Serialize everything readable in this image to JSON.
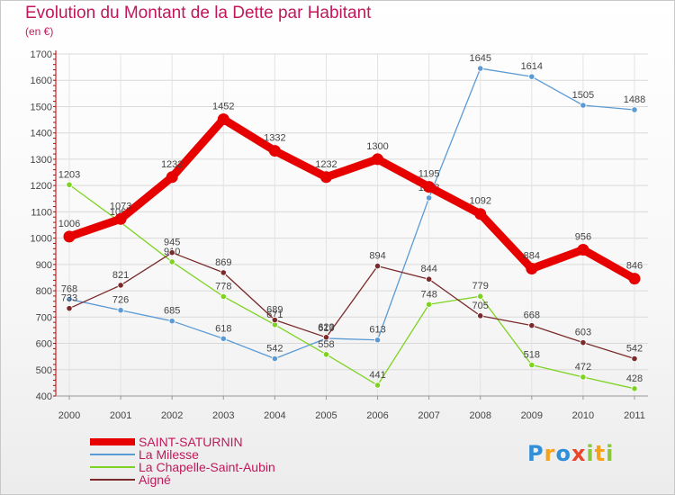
{
  "title": "Evolution du Montant de la Dette par Habitant",
  "subtitle": "(en €)",
  "logo": {
    "text": "Proxiti",
    "letters": [
      {
        "ch": "P",
        "color": "#2f8fd8"
      },
      {
        "ch": "r",
        "color": "#f7a11a"
      },
      {
        "ch": "o",
        "color": "#2f8fd8"
      },
      {
        "ch": "x",
        "color": "#e8472c"
      },
      {
        "ch": "i",
        "color": "#8cc63f"
      },
      {
        "ch": "t",
        "color": "#f7a11a"
      },
      {
        "ch": "i",
        "color": "#8cc63f"
      }
    ]
  },
  "chart_data": {
    "type": "line",
    "x": [
      "2000",
      "2001",
      "2002",
      "2003",
      "2004",
      "2005",
      "2006",
      "2007",
      "2008",
      "2009",
      "2010",
      "2011"
    ],
    "ylim": [
      400,
      1700
    ],
    "yticks": [
      400,
      500,
      600,
      700,
      800,
      900,
      1000,
      1100,
      1200,
      1300,
      1400,
      1500,
      1600,
      1700
    ],
    "grid": true,
    "legend_position": "bottom-left",
    "series": [
      {
        "name": "SAINT-SATURNIN",
        "color": "#e60000",
        "values": [
          1006,
          1073,
          1232,
          1452,
          1332,
          1232,
          1300,
          1195,
          1092,
          884,
          956,
          846
        ],
        "labels": [
          "1006",
          "1073",
          "1232",
          "1452",
          "1332",
          "1232",
          "1300",
          "1195",
          "1092",
          "884",
          "956",
          "846"
        ]
      },
      {
        "name": "La Milesse",
        "color": "#5b9bd5",
        "values": [
          768,
          726,
          685,
          618,
          542,
          619,
          613,
          1153,
          1645,
          1614,
          1505,
          1488
        ],
        "labels": [
          "768",
          "726",
          "685",
          "618",
          "542",
          "619",
          "613",
          "1153",
          "1645",
          "1614",
          "1505",
          "1488"
        ]
      },
      {
        "name": "La Chapelle-Saint-Aubin",
        "color": "#7ed321",
        "values": [
          1203,
          1060,
          910,
          778,
          671,
          558,
          441,
          748,
          779,
          518,
          472,
          428
        ],
        "labels": [
          "1203",
          "1060",
          "910",
          "778",
          "671",
          "558",
          "441",
          "748",
          "779",
          "518",
          "472",
          "428"
        ]
      },
      {
        "name": "Aigné",
        "color": "#7a2a2a",
        "values": [
          733,
          821,
          945,
          869,
          689,
          623,
          894,
          844,
          705,
          668,
          603,
          542
        ],
        "labels": [
          "733",
          "821",
          "945",
          "869",
          "689",
          "623",
          "894",
          "844",
          "705",
          "668",
          "603",
          "542"
        ]
      }
    ]
  }
}
